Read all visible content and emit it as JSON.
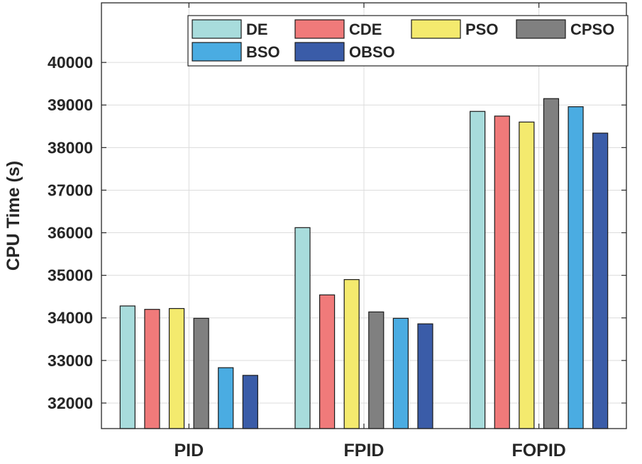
{
  "chart_data": {
    "type": "bar",
    "title": "",
    "xlabel": "",
    "ylabel": "CPU Time (s)",
    "categories": [
      "PID",
      "FPID",
      "FOPID"
    ],
    "ylim": [
      31400,
      41400
    ],
    "yticks": [
      32000,
      33000,
      34000,
      35000,
      36000,
      37000,
      38000,
      39000,
      40000
    ],
    "grid": true,
    "legend_position": "top-right",
    "series": [
      {
        "name": "DE",
        "color": "#a8dcdc",
        "values": [
          34280,
          36120,
          38850
        ]
      },
      {
        "name": "CDE",
        "color": "#f07a7a",
        "values": [
          34200,
          34540,
          38740
        ]
      },
      {
        "name": "PSO",
        "color": "#f4ea6e",
        "values": [
          34220,
          34900,
          38600
        ]
      },
      {
        "name": "CPSO",
        "color": "#808080",
        "values": [
          33990,
          34140,
          39150
        ]
      },
      {
        "name": "BSO",
        "color": "#4aace2",
        "values": [
          32830,
          33990,
          38960
        ]
      },
      {
        "name": "OBSO",
        "color": "#3a5ca8",
        "values": [
          32650,
          33860,
          38340
        ]
      }
    ]
  }
}
